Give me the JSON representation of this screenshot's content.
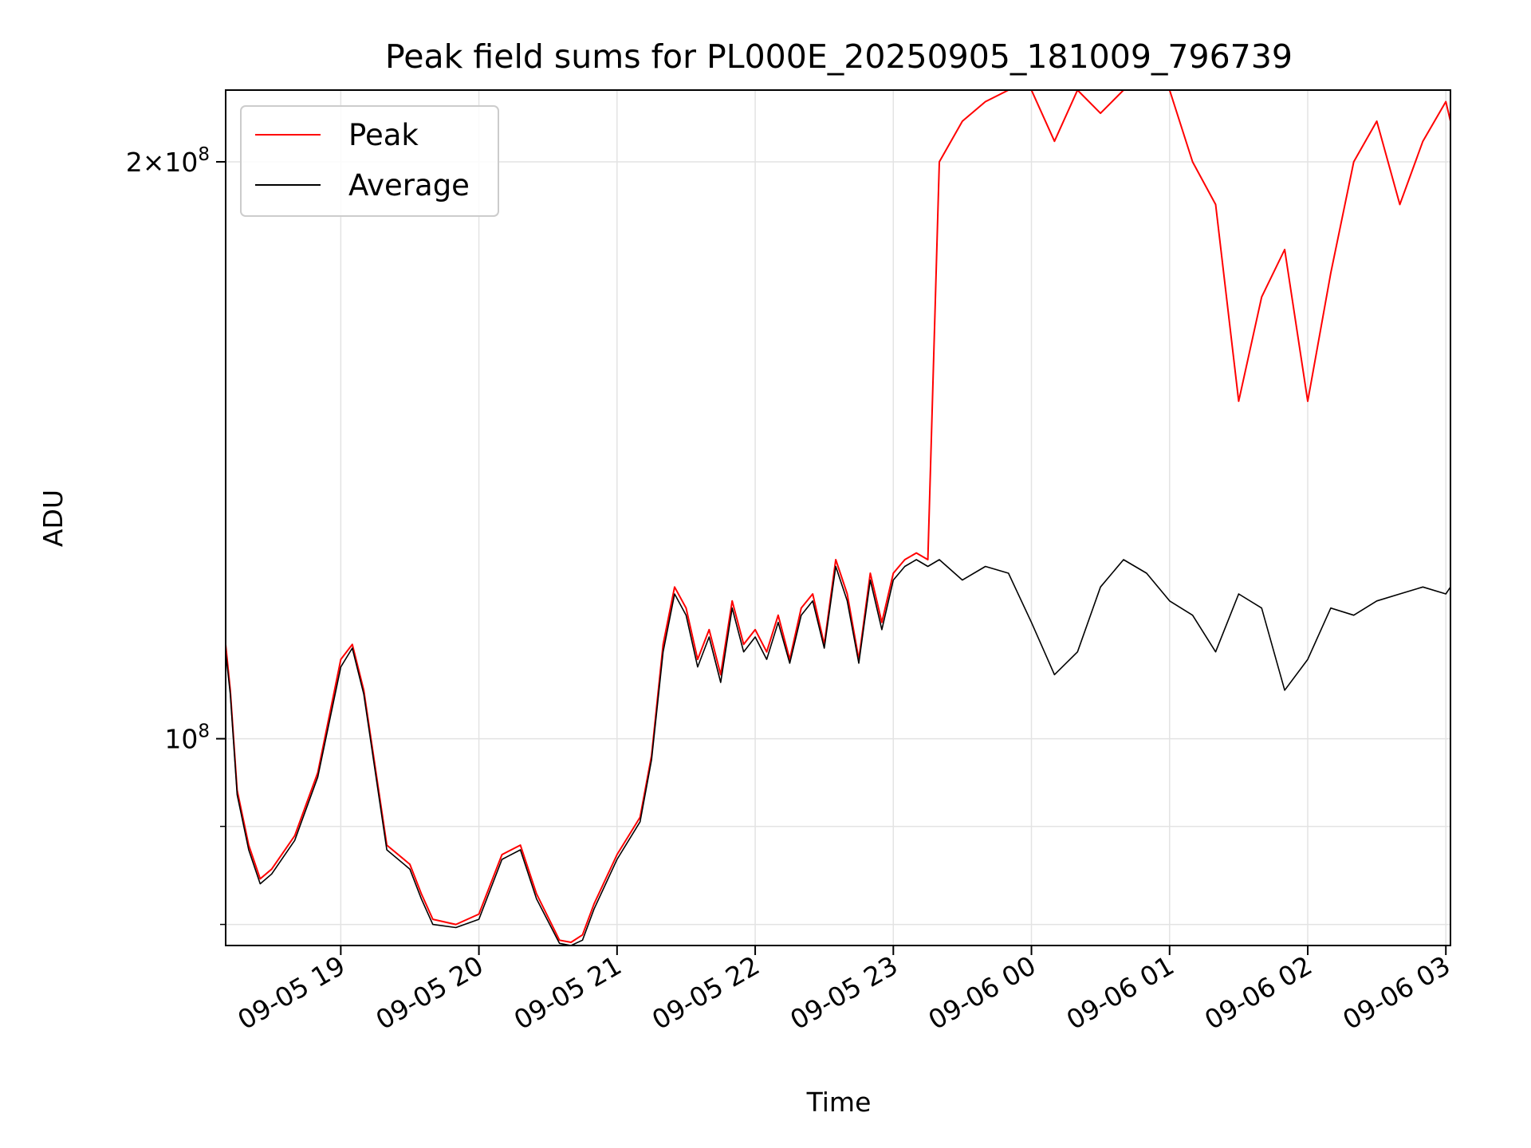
{
  "chart_data": {
    "type": "line",
    "title": "Peak field sums for PL000E_20250905_181009_796739",
    "xlabel": "Time",
    "ylabel": "ADU",
    "yscale": "log",
    "xlim": [
      "2025-09-05 18:10",
      "2025-09-06 03:02"
    ],
    "ylim": [
      78000000,
      218000000
    ],
    "grid": true,
    "legend": {
      "placement": "top-left",
      "entries": [
        "Peak",
        "Average"
      ]
    },
    "x_ticks": [
      "09-05 19",
      "09-05 20",
      "09-05 21",
      "09-05 22",
      "09-05 23",
      "09-06 00",
      "09-06 01",
      "09-06 02",
      "09-06 03"
    ],
    "y_ticks": [
      {
        "value": 200000000,
        "mantissa": "2",
        "exponent": "8"
      },
      {
        "value": 100000000,
        "mantissa": "",
        "exponent": "8"
      }
    ],
    "series": [
      {
        "name": "Peak",
        "color": "#ff0000",
        "x": [
          "2025-09-05 18:10",
          "2025-09-05 18:12",
          "2025-09-05 18:15",
          "2025-09-05 18:20",
          "2025-09-05 18:25",
          "2025-09-05 18:30",
          "2025-09-05 18:40",
          "2025-09-05 18:50",
          "2025-09-05 19:00",
          "2025-09-05 19:05",
          "2025-09-05 19:10",
          "2025-09-05 19:20",
          "2025-09-05 19:30",
          "2025-09-05 19:35",
          "2025-09-05 19:40",
          "2025-09-05 19:50",
          "2025-09-05 20:00",
          "2025-09-05 20:10",
          "2025-09-05 20:18",
          "2025-09-05 20:25",
          "2025-09-05 20:35",
          "2025-09-05 20:40",
          "2025-09-05 20:45",
          "2025-09-05 20:50",
          "2025-09-05 21:00",
          "2025-09-05 21:10",
          "2025-09-05 21:15",
          "2025-09-05 21:20",
          "2025-09-05 21:25",
          "2025-09-05 21:30",
          "2025-09-05 21:35",
          "2025-09-05 21:40",
          "2025-09-05 21:45",
          "2025-09-05 21:50",
          "2025-09-05 21:55",
          "2025-09-05 22:00",
          "2025-09-05 22:05",
          "2025-09-05 22:10",
          "2025-09-05 22:15",
          "2025-09-05 22:20",
          "2025-09-05 22:25",
          "2025-09-05 22:30",
          "2025-09-05 22:35",
          "2025-09-05 22:40",
          "2025-09-05 22:45",
          "2025-09-05 22:50",
          "2025-09-05 22:55",
          "2025-09-05 23:00",
          "2025-09-05 23:05",
          "2025-09-05 23:10",
          "2025-09-05 23:15",
          "2025-09-05 23:20",
          "2025-09-05 23:30",
          "2025-09-05 23:40",
          "2025-09-05 23:50",
          "2025-09-06 00:00",
          "2025-09-06 00:10",
          "2025-09-06 00:20",
          "2025-09-06 00:30",
          "2025-09-06 00:40",
          "2025-09-06 00:50",
          "2025-09-06 01:00",
          "2025-09-06 01:10",
          "2025-09-06 01:20",
          "2025-09-06 01:30",
          "2025-09-06 01:40",
          "2025-09-06 01:50",
          "2025-09-06 02:00",
          "2025-09-06 02:10",
          "2025-09-06 02:20",
          "2025-09-06 02:30",
          "2025-09-06 02:40",
          "2025-09-06 02:50",
          "2025-09-06 03:00",
          "2025-09-06 03:02"
        ],
        "values": [
          112000000,
          106000000,
          94000000,
          88000000,
          84500000,
          85500000,
          89000000,
          96000000,
          110000000,
          112000000,
          106000000,
          88000000,
          86000000,
          83000000,
          80500000,
          80000000,
          81000000,
          87000000,
          88000000,
          83000000,
          78500000,
          78300000,
          79000000,
          82000000,
          87000000,
          91000000,
          98000000,
          112000000,
          120000000,
          117000000,
          110000000,
          114000000,
          108000000,
          118000000,
          112000000,
          114000000,
          111000000,
          116000000,
          110000000,
          117000000,
          119000000,
          112000000,
          124000000,
          119000000,
          110000000,
          122000000,
          115000000,
          122000000,
          124000000,
          125000000,
          124000000,
          200000000,
          210000000,
          215000000,
          218000000,
          218000000,
          205000000,
          218000000,
          212000000,
          218000000,
          218000000,
          218000000,
          200000000,
          190000000,
          150000000,
          170000000,
          180000000,
          150000000,
          175000000,
          200000000,
          210000000,
          190000000,
          205000000,
          215000000,
          210000000
        ]
      },
      {
        "name": "Average",
        "color": "#000000",
        "x": [
          "2025-09-05 18:10",
          "2025-09-05 18:12",
          "2025-09-05 18:15",
          "2025-09-05 18:20",
          "2025-09-05 18:25",
          "2025-09-05 18:30",
          "2025-09-05 18:40",
          "2025-09-05 18:50",
          "2025-09-05 19:00",
          "2025-09-05 19:05",
          "2025-09-05 19:10",
          "2025-09-05 19:20",
          "2025-09-05 19:30",
          "2025-09-05 19:35",
          "2025-09-05 19:40",
          "2025-09-05 19:50",
          "2025-09-05 20:00",
          "2025-09-05 20:10",
          "2025-09-05 20:18",
          "2025-09-05 20:25",
          "2025-09-05 20:35",
          "2025-09-05 20:40",
          "2025-09-05 20:45",
          "2025-09-05 20:50",
          "2025-09-05 21:00",
          "2025-09-05 21:10",
          "2025-09-05 21:15",
          "2025-09-05 21:20",
          "2025-09-05 21:25",
          "2025-09-05 21:30",
          "2025-09-05 21:35",
          "2025-09-05 21:40",
          "2025-09-05 21:45",
          "2025-09-05 21:50",
          "2025-09-05 21:55",
          "2025-09-05 22:00",
          "2025-09-05 22:05",
          "2025-09-05 22:10",
          "2025-09-05 22:15",
          "2025-09-05 22:20",
          "2025-09-05 22:25",
          "2025-09-05 22:30",
          "2025-09-05 22:35",
          "2025-09-05 22:40",
          "2025-09-05 22:45",
          "2025-09-05 22:50",
          "2025-09-05 22:55",
          "2025-09-05 23:00",
          "2025-09-05 23:05",
          "2025-09-05 23:10",
          "2025-09-05 23:15",
          "2025-09-05 23:20",
          "2025-09-05 23:30",
          "2025-09-05 23:40",
          "2025-09-05 23:50",
          "2025-09-06 00:00",
          "2025-09-06 00:10",
          "2025-09-06 00:20",
          "2025-09-06 00:30",
          "2025-09-06 00:40",
          "2025-09-06 00:50",
          "2025-09-06 01:00",
          "2025-09-06 01:10",
          "2025-09-06 01:20",
          "2025-09-06 01:30",
          "2025-09-06 01:40",
          "2025-09-06 01:50",
          "2025-09-06 02:00",
          "2025-09-06 02:10",
          "2025-09-06 02:20",
          "2025-09-06 02:30",
          "2025-09-06 02:40",
          "2025-09-06 02:50",
          "2025-09-06 03:00",
          "2025-09-06 03:02"
        ],
        "values": [
          111000000,
          105500000,
          93500000,
          87500000,
          84000000,
          85000000,
          88500000,
          95500000,
          109000000,
          111500000,
          105500000,
          87500000,
          85500000,
          82500000,
          80000000,
          79700000,
          80500000,
          86500000,
          87500000,
          82500000,
          78200000,
          78000000,
          78500000,
          81500000,
          86500000,
          90500000,
          97500000,
          111000000,
          119000000,
          116000000,
          109000000,
          113000000,
          107000000,
          117000000,
          111000000,
          113000000,
          110000000,
          115000000,
          109500000,
          116000000,
          118000000,
          111500000,
          123000000,
          118000000,
          109500000,
          121000000,
          114000000,
          121000000,
          123000000,
          124000000,
          123000000,
          124000000,
          121000000,
          123000000,
          122000000,
          115000000,
          108000000,
          111000000,
          120000000,
          124000000,
          122000000,
          118000000,
          116000000,
          111000000,
          119000000,
          117000000,
          106000000,
          110000000,
          117000000,
          116000000,
          118000000,
          119000000,
          120000000,
          119000000,
          120000000
        ]
      }
    ]
  }
}
